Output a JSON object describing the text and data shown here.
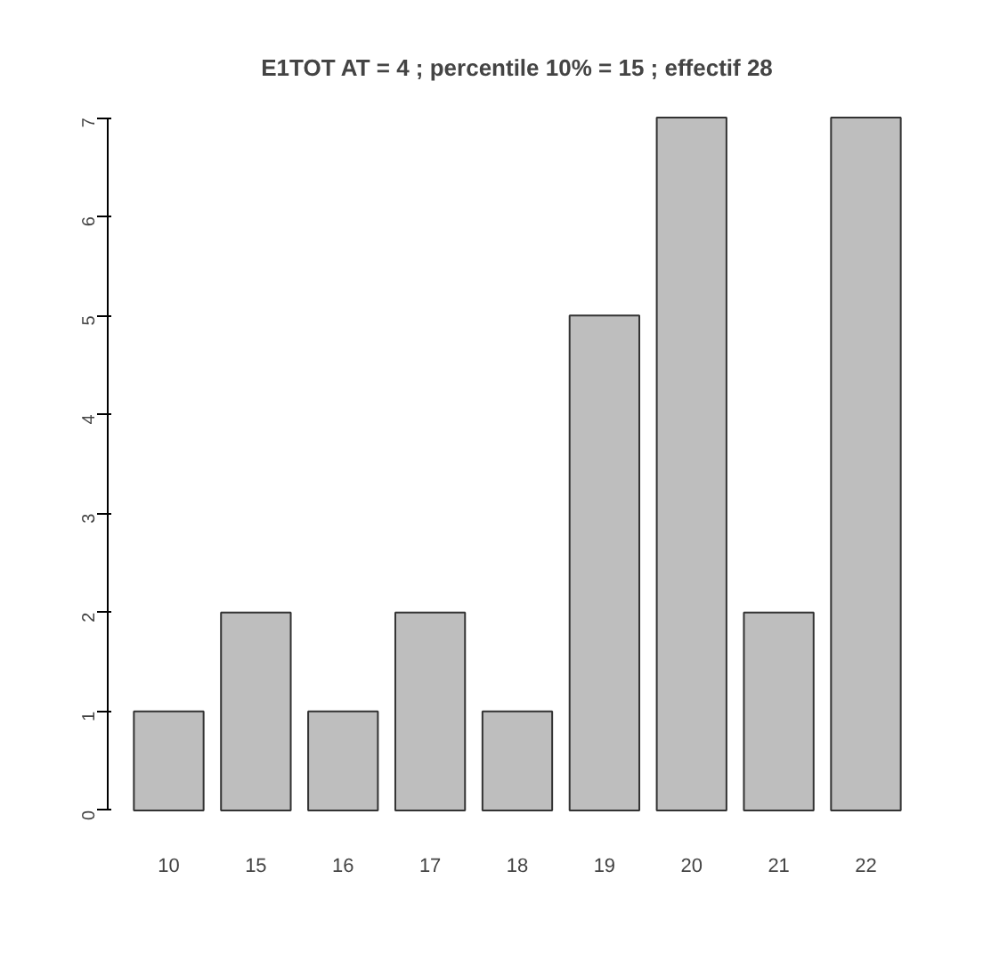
{
  "chart_data": {
    "type": "bar",
    "title": "E1TOT AT = 4 ; percentile 10% = 15 ; effectif 28",
    "categories": [
      "10",
      "15",
      "16",
      "17",
      "18",
      "19",
      "20",
      "21",
      "22"
    ],
    "values": [
      1,
      2,
      1,
      2,
      1,
      5,
      7,
      2,
      7
    ],
    "color": "#bebebe",
    "ylim": [
      0,
      7
    ],
    "yticks": [
      0,
      1,
      2,
      3,
      4,
      5,
      6,
      7
    ],
    "grid": false
  }
}
